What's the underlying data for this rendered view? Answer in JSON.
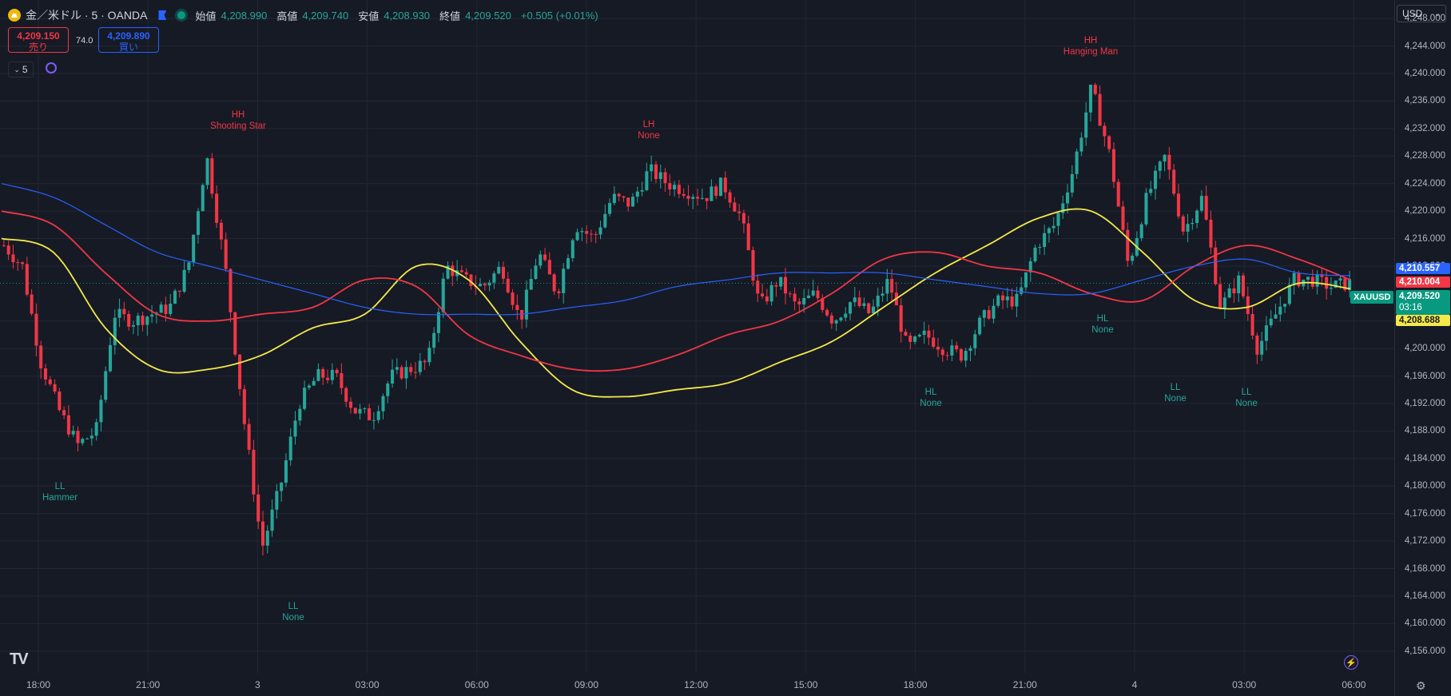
{
  "header": {
    "symbol_title": "金／米ドル · 5 · OANDA",
    "ohlc": [
      {
        "label": "始値",
        "value": "4,208.990"
      },
      {
        "label": "高値",
        "value": "4,209.740"
      },
      {
        "label": "安値",
        "value": "4,208.930"
      },
      {
        "label": "終値",
        "value": "4,209.520"
      }
    ],
    "change": "+0.505 (+0.01%)"
  },
  "trade": {
    "sell_price": "4,209.150",
    "sell_label": "売り",
    "spread": "74.0",
    "buy_price": "4,209.890",
    "buy_label": "買い"
  },
  "toolbar": {
    "interval": "5",
    "currency": "USD"
  },
  "price_axis": {
    "ticks": [
      "4,248.000",
      "4,244.000",
      "4,240.000",
      "4,236.000",
      "4,232.000",
      "4,228.000",
      "4,224.000",
      "4,220.000",
      "4,216.000",
      "4,212.000",
      "4,204.000",
      "4,200.000",
      "4,196.000",
      "4,192.000",
      "4,188.000",
      "4,184.000",
      "4,180.000",
      "4,176.000",
      "4,172.000",
      "4,168.000",
      "4,164.000",
      "4,160.000",
      "4,156.000"
    ]
  },
  "price_labels": {
    "ma_blue": "4,210.557",
    "ma_red": "4,210.004",
    "last_price": "4,209.520",
    "countdown": "03:16",
    "ma_yellow": "4,208.688",
    "symbol": "XAUUSD"
  },
  "time_axis": {
    "ticks": [
      "18:00",
      "21:00",
      "3",
      "03:00",
      "06:00",
      "09:00",
      "12:00",
      "15:00",
      "18:00",
      "21:00",
      "4",
      "03:00",
      "06:00"
    ]
  },
  "annotations": [
    {
      "line1": "HH",
      "line2": "Shooting Star",
      "type": "bear",
      "price": 4230.6
    },
    {
      "line1": "LH",
      "line2": "None",
      "type": "bear",
      "price": 4229.2
    },
    {
      "line1": "HH",
      "line2": "Hanging Man",
      "type": "bear",
      "price": 4241.4
    },
    {
      "line1": "LL",
      "line2": "Hammer",
      "type": "bull",
      "price": 4181.4
    },
    {
      "line1": "LL",
      "line2": "None",
      "type": "bull",
      "price": 4164.0
    },
    {
      "line1": "HL",
      "line2": "None",
      "type": "bull",
      "price": 4195.2
    },
    {
      "line1": "HL",
      "line2": "None",
      "type": "bull",
      "price": 4205.8
    },
    {
      "line1": "LL",
      "line2": "None",
      "type": "bull",
      "price": 4195.8
    },
    {
      "line1": "LL",
      "line2": "None",
      "type": "bull",
      "price": 4195.2
    }
  ],
  "colors": {
    "bull": "#26a69a",
    "bear": "#f23645",
    "ma_yellow": "#f5e94a",
    "ma_red": "#f23645",
    "ma_blue": "#2962ff",
    "background": "#161a25",
    "grid": "#232733"
  },
  "icons": {
    "symbol": "gold-coin-icon",
    "flag": "flag-icon",
    "status": "market-open-dot-icon",
    "interval_chevron": "chevron-down-icon",
    "replay": "loop-icon",
    "logo": "tradingview-logo",
    "alert": "bolt-icon",
    "settings": "gear-icon"
  },
  "chart_data": {
    "type": "candlestick",
    "title": "金／米ドル · 5 · OANDA",
    "ylim": [
      4154,
      4250
    ],
    "x_ticks": [
      "18:00",
      "21:00",
      "3",
      "03:00",
      "06:00",
      "09:00",
      "12:00",
      "15:00",
      "18:00",
      "21:00",
      "4",
      "03:00",
      "06:00"
    ],
    "close_path": [
      [
        "18:00",
        4215.0
      ],
      [
        "18:30",
        4212.0
      ],
      [
        "19:00",
        4198.0
      ],
      [
        "19:30",
        4191.0
      ],
      [
        "20:00",
        4186.0
      ],
      [
        "20:30",
        4188.0
      ],
      [
        "21:00",
        4205.0
      ],
      [
        "21:30",
        4204.0
      ],
      [
        "22:00",
        4205.0
      ],
      [
        "22:30",
        4206.0
      ],
      [
        "23:00",
        4212.0
      ],
      [
        "23:30",
        4228.0
      ],
      [
        "00:00",
        4212.0
      ],
      [
        "00:30",
        4190.0
      ],
      [
        "01:00",
        4171.0
      ],
      [
        "01:30",
        4180.0
      ],
      [
        "02:00",
        4192.0
      ],
      [
        "02:30",
        4196.0
      ],
      [
        "03:00",
        4196.0
      ],
      [
        "03:30",
        4191.0
      ],
      [
        "04:00",
        4190.0
      ],
      [
        "04:30",
        4196.0
      ],
      [
        "05:00",
        4197.0
      ],
      [
        "05:30",
        4198.0
      ],
      [
        "06:00",
        4212.0
      ],
      [
        "06:30",
        4210.0
      ],
      [
        "07:00",
        4209.0
      ],
      [
        "07:30",
        4212.0
      ],
      [
        "08:00",
        4204.0
      ],
      [
        "08:30",
        4214.0
      ],
      [
        "09:00",
        4208.0
      ],
      [
        "09:30",
        4218.0
      ],
      [
        "10:00",
        4216.0
      ],
      [
        "10:30",
        4222.0
      ],
      [
        "11:00",
        4221.0
      ],
      [
        "11:30",
        4226.0
      ],
      [
        "12:00",
        4224.0
      ],
      [
        "12:30",
        4223.0
      ],
      [
        "13:00",
        4222.0
      ],
      [
        "13:30",
        4224.0
      ],
      [
        "14:00",
        4219.0
      ],
      [
        "14:30",
        4206.0
      ],
      [
        "15:00",
        4210.0
      ],
      [
        "15:30",
        4206.0
      ],
      [
        "16:00",
        4208.0
      ],
      [
        "16:30",
        4204.0
      ],
      [
        "17:00",
        4207.0
      ],
      [
        "17:30",
        4205.0
      ],
      [
        "18:00",
        4210.0
      ],
      [
        "18:30",
        4200.0
      ],
      [
        "19:00",
        4202.0
      ],
      [
        "19:30",
        4200.0
      ],
      [
        "20:00",
        4199.0
      ],
      [
        "20:30",
        4204.0
      ],
      [
        "21:00",
        4207.0
      ],
      [
        "21:30",
        4207.0
      ],
      [
        "22:00",
        4215.0
      ],
      [
        "22:30",
        4218.0
      ],
      [
        "23:00",
        4226.0
      ],
      [
        "23:30",
        4238.0
      ],
      [
        "00:00",
        4228.0
      ],
      [
        "00:30",
        4212.0
      ],
      [
        "01:00",
        4222.0
      ],
      [
        "01:30",
        4228.0
      ],
      [
        "02:00",
        4217.0
      ],
      [
        "02:30",
        4222.0
      ],
      [
        "03:00",
        4206.0
      ],
      [
        "03:30",
        4210.0
      ],
      [
        "04:00",
        4200.0
      ],
      [
        "04:30",
        4205.0
      ],
      [
        "05:00",
        4210.0
      ],
      [
        "05:30",
        4210.0
      ],
      [
        "06:00",
        4209.0
      ],
      [
        "06:30",
        4209.5
      ]
    ],
    "series": [
      {
        "color": "#f5e94a",
        "values": [
          4216,
          4214,
          4203,
          4197,
          4197,
          4199,
          4203,
          4205,
          4212,
          4210,
          4201,
          4194,
          4193,
          4194,
          4195,
          4198,
          4201,
          4206,
          4211,
          4215,
          4219,
          4220,
          4214,
          4207,
          4206,
          4209.5,
          4208.7
        ]
      },
      {
        "color": "#f23645",
        "values": [
          4220,
          4218,
          4211,
          4205,
          4204,
          4205,
          4206,
          4210,
          4209,
          4202,
          4199,
          4197,
          4197,
          4199,
          4202,
          4204,
          4208,
          4213,
          4214,
          4212,
          4211,
          4208,
          4207,
          4212,
          4215,
          4213,
          4210.0
        ]
      },
      {
        "color": "#2962ff",
        "values": [
          4224,
          4222,
          4218,
          4214,
          4212,
          4210,
          4208,
          4206,
          4205,
          4205,
          4205,
          4206,
          4207,
          4209,
          4210,
          4211,
          4211,
          4211,
          4210,
          4209,
          4208,
          4208,
          4210,
          4212,
          4213,
          4211,
          4210.6
        ]
      }
    ]
  }
}
